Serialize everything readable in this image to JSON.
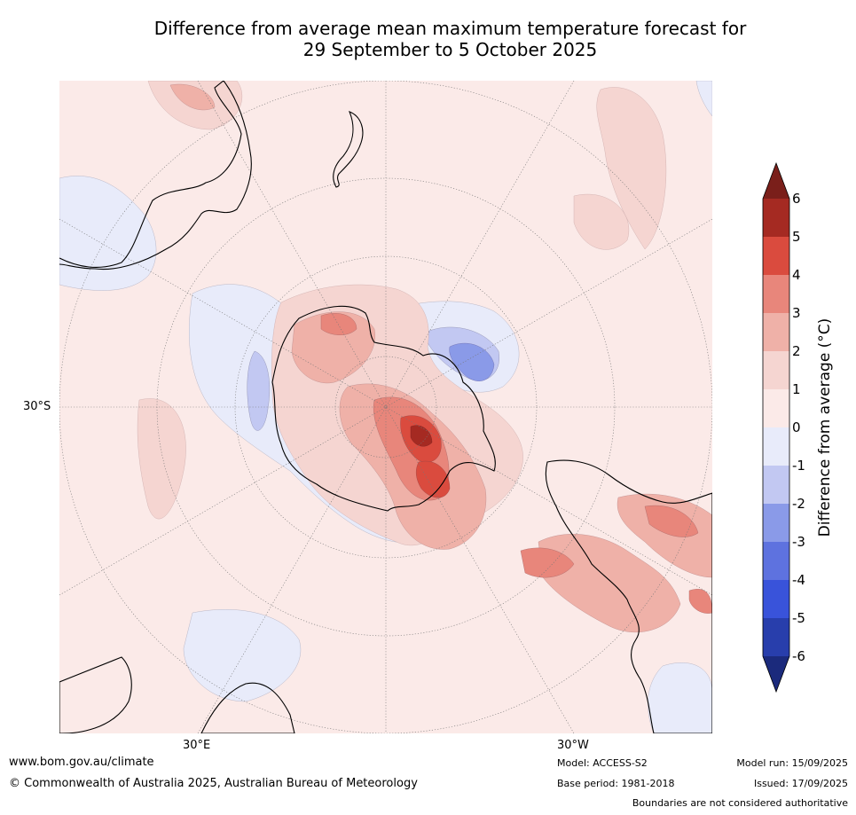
{
  "title_line1": "Difference from average mean maximum temperature forecast for",
  "title_line2": "29 September to 5 October 2025",
  "map": {
    "projection": "south polar stereographic",
    "lat_label": "30°S",
    "lon_labels": [
      "30°E",
      "30°W"
    ]
  },
  "colorbar": {
    "label": "Difference from average (°C)",
    "ticks": [
      "6",
      "5",
      "4",
      "3",
      "2",
      "1",
      "0",
      "-1",
      "-2",
      "-3",
      "-4",
      "-5",
      "-6"
    ],
    "colors": {
      "over": "#7a1f1a",
      "5_6": "#a52a22",
      "4_5": "#da4b3e",
      "3_4": "#e8867b",
      "2_3": "#efb1a8",
      "1_2": "#f5d5d1",
      "0_1": "#fbeae8",
      "m1_0": "#e8ebfa",
      "m2_m1": "#c2c8f2",
      "m3_m2": "#8a9ae8",
      "m4_m3": "#5e72df",
      "m5_m4": "#3953da",
      "m6_m5": "#283eac",
      "under": "#1b2a7c"
    }
  },
  "footer": {
    "url": "www.bom.gov.au/climate",
    "copyright": "© Commonwealth of Australia 2025, Australian Bureau of Meteorology",
    "model": "Model: ACCESS-S2",
    "base_period": "Base period: 1981-2018",
    "model_run": "Model run: 15/09/2025",
    "issued": "Issued: 17/09/2025",
    "disclaimer": "Boundaries are not considered authoritative"
  }
}
